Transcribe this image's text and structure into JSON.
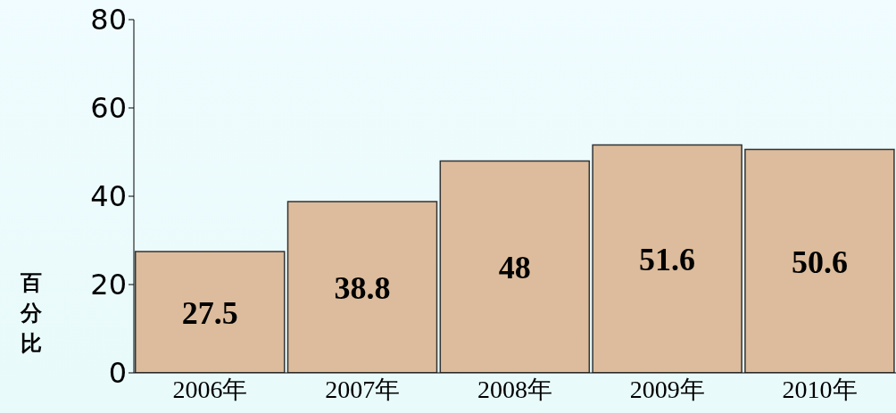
{
  "chart_data": {
    "type": "bar",
    "ylabel": "百分比",
    "categories": [
      "2006年",
      "2007年",
      "2008年",
      "2009年",
      "2010年"
    ],
    "values": [
      27.5,
      38.8,
      48,
      51.6,
      50.6
    ],
    "color": "#dcbc9c",
    "ylim": [
      0,
      80
    ],
    "yticks": [
      0,
      20,
      40,
      60,
      80
    ],
    "grid": false,
    "legend": false,
    "data_labels": true
  }
}
